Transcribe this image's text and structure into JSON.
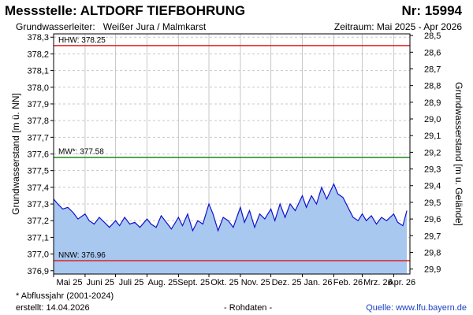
{
  "header": {
    "title": "Messstelle: ALTDORF TIEFBOHRUNG",
    "number": "Nr: 15994",
    "aquifer_label": "Grundwasserleiter:",
    "aquifer": "Weißer Jura / Malmkarst",
    "period": "Zeitraum: Mai 2025 - Apr 2026"
  },
  "footer": {
    "footnote": "* Abflussjahr (2001-2024)",
    "created": "erstellt:  14.04.2026",
    "rawdata": "- Rohdaten -",
    "source": "Quelle: www.lfu.bayern.de"
  },
  "colors": {
    "area": "#a8c8f0",
    "line": "#1111cc",
    "hhw": "#e02020",
    "nnw": "#e02020",
    "mw": "#1a8a1a",
    "grid": "#c8c8c8"
  },
  "chart_data": {
    "type": "area",
    "ylabel": "Grundwasserstand [m ü. NN]",
    "ylabel_right": "Grundwasserstand [m u. Gelände]",
    "ylim": [
      376.88,
      378.32
    ],
    "ylim_right": [
      28.5,
      29.9
    ],
    "yticks": [
      "376,9",
      "377,0",
      "377,1",
      "377,2",
      "377,3",
      "377,4",
      "377,5",
      "377,6",
      "377,7",
      "377,8",
      "377,9",
      "378,0",
      "378,1",
      "378,2",
      "378,3"
    ],
    "yticks_right": [
      "28,5",
      "28,6",
      "28,7",
      "28,8",
      "28,9",
      "29,0",
      "29,1",
      "29,2",
      "29,3",
      "29,4",
      "29,5",
      "29,6",
      "29,7",
      "29,8",
      "29,9"
    ],
    "x_categories": [
      "Mai 25",
      "Juni 25",
      "Juli 25",
      "Aug. 25",
      "Sept. 25",
      "Okt. 25",
      "Nov. 25",
      "Dez. 25",
      "Jan. 26",
      "Feb. 26",
      "Mrz. 26",
      "Apr. 26"
    ],
    "grid": true,
    "reference_lines": [
      {
        "label": "HHW: 378.25",
        "value": 378.25
      },
      {
        "label": "MW*: 377.58",
        "value": 377.58
      },
      {
        "label": "NNW: 376.96",
        "value": 376.96
      }
    ],
    "series": [
      {
        "x": [
          "2025-05-01",
          "2025-05-05",
          "2025-05-10",
          "2025-05-15",
          "2025-05-20",
          "2025-05-25",
          "2025-06-01",
          "2025-06-05",
          "2025-06-10",
          "2025-06-15",
          "2025-06-20",
          "2025-06-25",
          "2025-07-01",
          "2025-07-05",
          "2025-07-10",
          "2025-07-15",
          "2025-07-20",
          "2025-07-25",
          "2025-08-01",
          "2025-08-05",
          "2025-08-10",
          "2025-08-15",
          "2025-08-20",
          "2025-08-25",
          "2025-09-01",
          "2025-09-05",
          "2025-09-10",
          "2025-09-15",
          "2025-09-20",
          "2025-09-25",
          "2025-10-01",
          "2025-10-05",
          "2025-10-10",
          "2025-10-15",
          "2025-10-20",
          "2025-10-25",
          "2025-11-01",
          "2025-11-05",
          "2025-11-10",
          "2025-11-15",
          "2025-11-20",
          "2025-11-25",
          "2025-12-01",
          "2025-12-05",
          "2025-12-10",
          "2025-12-15",
          "2025-12-20",
          "2025-12-25",
          "2026-01-01",
          "2026-01-05",
          "2026-01-10",
          "2026-01-15",
          "2026-01-20",
          "2026-01-25",
          "2026-02-01",
          "2026-02-05",
          "2026-02-10",
          "2026-02-15",
          "2026-02-20",
          "2026-02-25",
          "2026-03-01",
          "2026-03-05",
          "2026-03-10",
          "2026-03-15",
          "2026-03-20",
          "2026-03-25",
          "2026-04-01",
          "2026-04-05",
          "2026-04-10",
          "2026-04-14"
        ],
        "values": [
          377.33,
          377.3,
          377.27,
          377.28,
          377.25,
          377.21,
          377.24,
          377.2,
          377.18,
          377.22,
          377.19,
          377.16,
          377.2,
          377.17,
          377.22,
          377.18,
          377.19,
          377.16,
          377.21,
          377.18,
          377.16,
          377.23,
          377.19,
          377.15,
          377.22,
          377.17,
          377.24,
          377.14,
          377.2,
          377.18,
          377.3,
          377.24,
          377.14,
          377.22,
          377.2,
          377.16,
          377.28,
          377.19,
          377.26,
          377.16,
          377.24,
          377.21,
          377.27,
          377.2,
          377.3,
          377.22,
          377.3,
          377.26,
          377.35,
          377.28,
          377.35,
          377.3,
          377.4,
          377.33,
          377.42,
          377.36,
          377.34,
          377.28,
          377.22,
          377.2,
          377.24,
          377.2,
          377.23,
          377.18,
          377.22,
          377.2,
          377.24,
          377.19,
          377.17,
          377.26
        ]
      }
    ]
  }
}
